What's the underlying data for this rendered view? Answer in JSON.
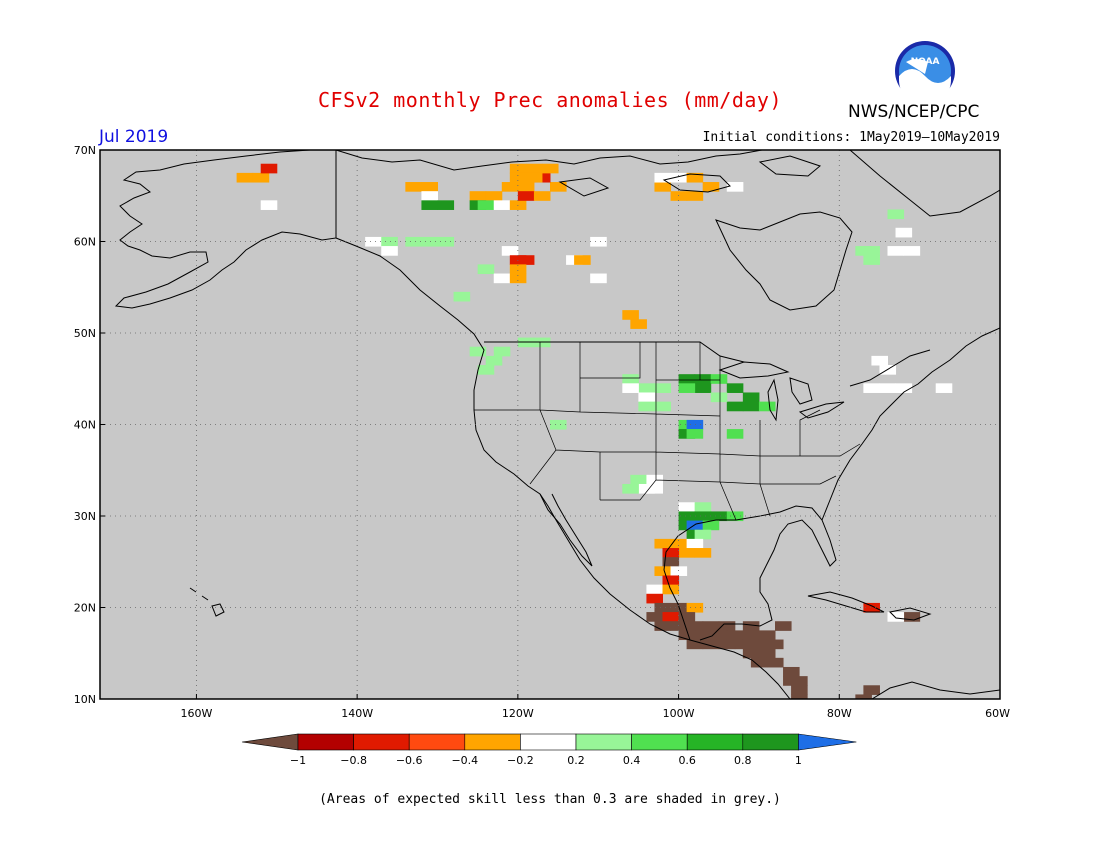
{
  "title": "CFSv2 monthly Prec anomalies (mm/day)",
  "agency": "NWS/NCEP/CPC",
  "logo_text": "NOAA",
  "month": "Jul 2019",
  "initial_conditions": "Initial conditions: 1May2019—10May2019",
  "footnote": "(Areas of expected skill less than 0.3 are shaded in grey.)",
  "colors": {
    "skill_grey": "#c8c8c8",
    "land_outline": "#000000",
    "bins": [
      "#6e4a3c",
      "#b30000",
      "#e01a00",
      "#ff4a10",
      "#ffa500",
      "#ffffff",
      "#98f598",
      "#50e050",
      "#26b426",
      "#1e961e",
      "#1e6ee6"
    ]
  },
  "chart_data": {
    "type": "heatmap",
    "lat_range": [
      10,
      70
    ],
    "lon_range": [
      -172,
      -60
    ],
    "lat_ticks": [
      "10N",
      "20N",
      "30N",
      "40N",
      "50N",
      "60N",
      "70N"
    ],
    "lon_ticks": [
      "160W",
      "140W",
      "120W",
      "100W",
      "80W",
      "60W"
    ],
    "colorbar": {
      "labels": [
        "−1",
        "−0.8",
        "−0.6",
        "−0.4",
        "−0.2",
        "0.2",
        "0.4",
        "0.6",
        "0.8",
        "1"
      ],
      "colors": [
        "#6e4a3c",
        "#b30000",
        "#e01a00",
        "#ff4a10",
        "#ffa500",
        "#ffffff",
        "#98f598",
        "#50e050",
        "#26b426",
        "#1e961e",
        "#1e6ee6"
      ]
    },
    "cells": [
      {
        "lon": -154,
        "lat": 67,
        "v": -0.5
      },
      {
        "lon": -152,
        "lat": 67,
        "v": -0.5
      },
      {
        "lon": -151,
        "lat": 68,
        "v": -0.7
      },
      {
        "lon": -151,
        "lat": 64,
        "v": 0
      },
      {
        "lon": -133,
        "lat": 66,
        "v": -0.5
      },
      {
        "lon": -131,
        "lat": 66,
        "v": -0.5
      },
      {
        "lon": -131,
        "lat": 65,
        "v": 0
      },
      {
        "lon": -131,
        "lat": 64,
        "v": 0.8
      },
      {
        "lon": -129,
        "lat": 64,
        "v": 0.8
      },
      {
        "lon": -125,
        "lat": 65,
        "v": -0.5
      },
      {
        "lon": -123,
        "lat": 65,
        "v": -0.5
      },
      {
        "lon": -121,
        "lat": 66,
        "v": -0.5
      },
      {
        "lon": -119,
        "lat": 66,
        "v": -0.5
      },
      {
        "lon": -125,
        "lat": 64,
        "v": 0.8
      },
      {
        "lon": -124,
        "lat": 64,
        "v": 0.5
      },
      {
        "lon": -122,
        "lat": 64,
        "v": 0
      },
      {
        "lon": -120,
        "lat": 64,
        "v": -0.5
      },
      {
        "lon": -119,
        "lat": 65,
        "v": -0.7
      },
      {
        "lon": -117,
        "lat": 65,
        "v": -0.5
      },
      {
        "lon": -115,
        "lat": 66,
        "v": -0.5
      },
      {
        "lon": -117,
        "lat": 67,
        "v": -0.7
      },
      {
        "lon": -118,
        "lat": 68,
        "v": -0.5
      },
      {
        "lon": -120,
        "lat": 68,
        "v": -0.5
      },
      {
        "lon": -116,
        "lat": 68,
        "v": -0.5
      },
      {
        "lon": -120,
        "lat": 67,
        "v": -0.5
      },
      {
        "lon": -118,
        "lat": 67,
        "v": -0.5
      },
      {
        "lon": -102,
        "lat": 66,
        "v": -0.5
      },
      {
        "lon": -100,
        "lat": 65,
        "v": -0.5
      },
      {
        "lon": -98,
        "lat": 65,
        "v": -0.5
      },
      {
        "lon": -96,
        "lat": 66,
        "v": -0.5
      },
      {
        "lon": -100,
        "lat": 67,
        "v": 0
      },
      {
        "lon": -102,
        "lat": 67,
        "v": 0
      },
      {
        "lon": -93,
        "lat": 66,
        "v": 0
      },
      {
        "lon": -98,
        "lat": 67,
        "v": -0.5
      },
      {
        "lon": -138,
        "lat": 60,
        "v": 0
      },
      {
        "lon": -136,
        "lat": 60,
        "v": 0.3
      },
      {
        "lon": -133,
        "lat": 60,
        "v": 0.3
      },
      {
        "lon": -131,
        "lat": 60,
        "v": 0.3
      },
      {
        "lon": -129,
        "lat": 60,
        "v": 0.3
      },
      {
        "lon": -136,
        "lat": 59,
        "v": 0
      },
      {
        "lon": -121,
        "lat": 59,
        "v": 0
      },
      {
        "lon": -120,
        "lat": 58,
        "v": -0.7
      },
      {
        "lon": -119,
        "lat": 58,
        "v": -0.7
      },
      {
        "lon": -120,
        "lat": 57,
        "v": -0.5
      },
      {
        "lon": -124,
        "lat": 57,
        "v": 0.3
      },
      {
        "lon": -122,
        "lat": 56,
        "v": 0
      },
      {
        "lon": -120,
        "lat": 56,
        "v": -0.5
      },
      {
        "lon": -113,
        "lat": 58,
        "v": 0
      },
      {
        "lon": -112,
        "lat": 58,
        "v": -0.5
      },
      {
        "lon": -110,
        "lat": 56,
        "v": 0
      },
      {
        "lon": -110,
        "lat": 60,
        "v": 0
      },
      {
        "lon": -106,
        "lat": 52,
        "v": -0.5
      },
      {
        "lon": -105,
        "lat": 51,
        "v": -0.5
      },
      {
        "lon": -127,
        "lat": 54,
        "v": 0.3
      },
      {
        "lon": -125,
        "lat": 48,
        "v": 0.3
      },
      {
        "lon": -123,
        "lat": 47,
        "v": 0.3
      },
      {
        "lon": -122,
        "lat": 48,
        "v": 0.3
      },
      {
        "lon": -119,
        "lat": 49,
        "v": 0.3
      },
      {
        "lon": -117,
        "lat": 49,
        "v": 0.3
      },
      {
        "lon": -124,
        "lat": 46,
        "v": 0.3
      },
      {
        "lon": -106,
        "lat": 45,
        "v": 0.3
      },
      {
        "lon": -104,
        "lat": 44,
        "v": 0.3
      },
      {
        "lon": -102,
        "lat": 44,
        "v": 0.3
      },
      {
        "lon": -106,
        "lat": 44,
        "v": 0
      },
      {
        "lon": -104,
        "lat": 43,
        "v": 0
      },
      {
        "lon": -102,
        "lat": 42,
        "v": 0.3
      },
      {
        "lon": -104,
        "lat": 42,
        "v": 0.3
      },
      {
        "lon": -99,
        "lat": 45,
        "v": 0.8
      },
      {
        "lon": -97,
        "lat": 45,
        "v": 0.8
      },
      {
        "lon": -95,
        "lat": 45,
        "v": 0.5
      },
      {
        "lon": -97,
        "lat": 44,
        "v": 0.8
      },
      {
        "lon": -99,
        "lat": 44,
        "v": 0.5
      },
      {
        "lon": -93,
        "lat": 44,
        "v": 0.8
      },
      {
        "lon": -91,
        "lat": 43,
        "v": 0.8
      },
      {
        "lon": -93,
        "lat": 42,
        "v": 0.8
      },
      {
        "lon": -91,
        "lat": 42,
        "v": 0.8
      },
      {
        "lon": -89,
        "lat": 42,
        "v": 0.5
      },
      {
        "lon": -95,
        "lat": 43,
        "v": 0.3
      },
      {
        "lon": -99,
        "lat": 40,
        "v": 0.5
      },
      {
        "lon": -98,
        "lat": 40,
        "v": 1
      },
      {
        "lon": -99,
        "lat": 39,
        "v": 0.8
      },
      {
        "lon": -98,
        "lat": 39,
        "v": 0.5
      },
      {
        "lon": -93,
        "lat": 39,
        "v": 0.5
      },
      {
        "lon": -115,
        "lat": 40,
        "v": 0.3
      },
      {
        "lon": -105,
        "lat": 34,
        "v": 0.3
      },
      {
        "lon": -103,
        "lat": 34,
        "v": 0
      },
      {
        "lon": -104,
        "lat": 33,
        "v": 0
      },
      {
        "lon": -103,
        "lat": 33,
        "v": 0
      },
      {
        "lon": -106,
        "lat": 33,
        "v": 0.3
      },
      {
        "lon": -99,
        "lat": 31,
        "v": 0
      },
      {
        "lon": -97,
        "lat": 31,
        "v": 0.3
      },
      {
        "lon": -99,
        "lat": 30,
        "v": 0.8
      },
      {
        "lon": -97,
        "lat": 30,
        "v": 0.8
      },
      {
        "lon": -95,
        "lat": 30,
        "v": 0.8
      },
      {
        "lon": -93,
        "lat": 30,
        "v": 0.5
      },
      {
        "lon": -99,
        "lat": 29,
        "v": 0.8
      },
      {
        "lon": -98,
        "lat": 29,
        "v": 1
      },
      {
        "lon": -96,
        "lat": 29,
        "v": 0.5
      },
      {
        "lon": -98,
        "lat": 28,
        "v": 0.8
      },
      {
        "lon": -97,
        "lat": 28,
        "v": 0.3
      },
      {
        "lon": -102,
        "lat": 27,
        "v": -0.5
      },
      {
        "lon": -100,
        "lat": 27,
        "v": -0.5
      },
      {
        "lon": -98,
        "lat": 27,
        "v": 0
      },
      {
        "lon": -99,
        "lat": 26,
        "v": -0.5
      },
      {
        "lon": -97,
        "lat": 26,
        "v": -0.5
      },
      {
        "lon": -101,
        "lat": 26,
        "v": -0.7
      },
      {
        "lon": -101,
        "lat": 25,
        "v": -0.9
      },
      {
        "lon": -102,
        "lat": 24,
        "v": -0.5
      },
      {
        "lon": -100,
        "lat": 24,
        "v": 0
      },
      {
        "lon": -101,
        "lat": 23,
        "v": -0.7
      },
      {
        "lon": -103,
        "lat": 22,
        "v": 0
      },
      {
        "lon": -101,
        "lat": 22,
        "v": -0.5
      },
      {
        "lon": -103,
        "lat": 21,
        "v": -0.7
      },
      {
        "lon": -102,
        "lat": 20,
        "v": -0.9
      },
      {
        "lon": -100,
        "lat": 20,
        "v": -0.9
      },
      {
        "lon": -98,
        "lat": 20,
        "v": -0.5
      },
      {
        "lon": -103,
        "lat": 19,
        "v": -0.9
      },
      {
        "lon": -101,
        "lat": 19,
        "v": -0.7
      },
      {
        "lon": -99,
        "lat": 19,
        "v": -0.9
      },
      {
        "lon": -102,
        "lat": 18,
        "v": -0.9
      },
      {
        "lon": -100,
        "lat": 18,
        "v": -0.9
      },
      {
        "lon": -98,
        "lat": 18,
        "v": -0.9
      },
      {
        "lon": -96,
        "lat": 18,
        "v": -0.9
      },
      {
        "lon": -94,
        "lat": 18,
        "v": -0.9
      },
      {
        "lon": -99,
        "lat": 17,
        "v": -1
      },
      {
        "lon": -97,
        "lat": 17,
        "v": -1
      },
      {
        "lon": -95,
        "lat": 17,
        "v": -1
      },
      {
        "lon": -93,
        "lat": 17,
        "v": -1
      },
      {
        "lon": -91,
        "lat": 17,
        "v": -1
      },
      {
        "lon": -89,
        "lat": 17,
        "v": -0.9
      },
      {
        "lon": -91,
        "lat": 18,
        "v": -0.9
      },
      {
        "lon": -98,
        "lat": 16,
        "v": -1
      },
      {
        "lon": -96,
        "lat": 16,
        "v": -1
      },
      {
        "lon": -94,
        "lat": 16,
        "v": -1
      },
      {
        "lon": -92,
        "lat": 16,
        "v": -1
      },
      {
        "lon": -90,
        "lat": 16,
        "v": -1
      },
      {
        "lon": -91,
        "lat": 15,
        "v": -1
      },
      {
        "lon": -89,
        "lat": 15,
        "v": -1
      },
      {
        "lon": -90,
        "lat": 14,
        "v": -1
      },
      {
        "lon": -88,
        "lat": 14,
        "v": -1
      },
      {
        "lon": -86,
        "lat": 13,
        "v": -0.9
      },
      {
        "lon": -85,
        "lat": 12,
        "v": -0.9
      },
      {
        "lon": -86,
        "lat": 12,
        "v": -1
      },
      {
        "lon": -85,
        "lat": 11,
        "v": -0.9
      },
      {
        "lon": -85,
        "lat": 10,
        "v": -1
      },
      {
        "lon": -87,
        "lat": 18,
        "v": -0.9
      },
      {
        "lon": -88,
        "lat": 16,
        "v": -1
      },
      {
        "lon": -77,
        "lat": 10,
        "v": -1
      },
      {
        "lon": -76,
        "lat": 11,
        "v": -1
      },
      {
        "lon": -76,
        "lat": 20,
        "v": -0.7
      },
      {
        "lon": -71,
        "lat": 19,
        "v": -0.9
      },
      {
        "lon": -73,
        "lat": 19,
        "v": 0
      },
      {
        "lon": -73,
        "lat": 63,
        "v": 0.3
      },
      {
        "lon": -77,
        "lat": 59,
        "v": 0.3
      },
      {
        "lon": -76,
        "lat": 59,
        "v": 0.3
      },
      {
        "lon": -73,
        "lat": 59,
        "v": 0
      },
      {
        "lon": -72,
        "lat": 61,
        "v": 0
      },
      {
        "lon": -71,
        "lat": 59,
        "v": 0
      },
      {
        "lon": -76,
        "lat": 58,
        "v": 0.3
      },
      {
        "lon": -75,
        "lat": 47,
        "v": 0
      },
      {
        "lon": -74,
        "lat": 46,
        "v": 0
      },
      {
        "lon": -72,
        "lat": 44,
        "v": 0
      },
      {
        "lon": -74,
        "lat": 44,
        "v": 0
      },
      {
        "lon": -76,
        "lat": 44,
        "v": 0
      },
      {
        "lon": -67,
        "lat": 44,
        "v": 0
      }
    ]
  }
}
